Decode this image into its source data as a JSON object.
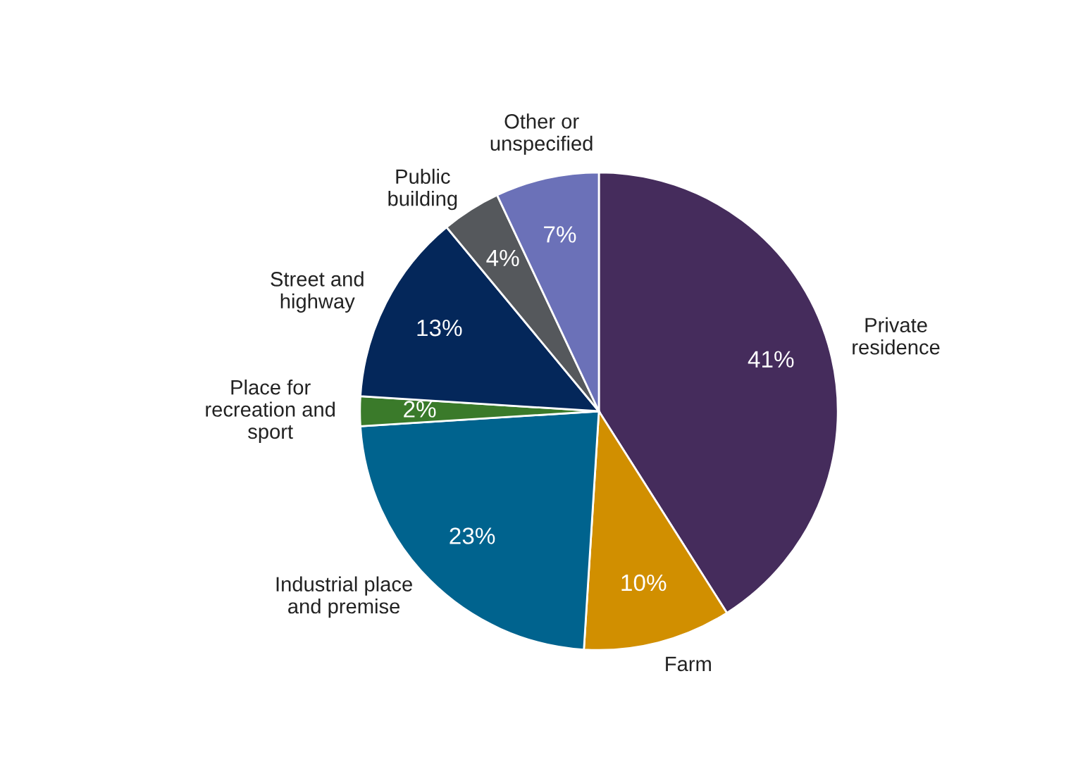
{
  "chart_data": {
    "type": "pie",
    "categories": [
      "Private\nresidence",
      "Farm",
      "Industrial place\nand premise",
      "Place for\nrecreation and\nsport",
      "Street and\nhighway",
      "Public\nbuilding",
      "Other or\nunspecified"
    ],
    "values": [
      41,
      10,
      23,
      2,
      13,
      4,
      7
    ],
    "value_labels": [
      "41%",
      "10%",
      "23%",
      "2%",
      "13%",
      "4%",
      "7%"
    ],
    "colors": [
      "#452c5c",
      "#d18f00",
      "#00638e",
      "#3a7a2a",
      "#04275a",
      "#55585c",
      "#6b71b8"
    ],
    "legend": false
  }
}
